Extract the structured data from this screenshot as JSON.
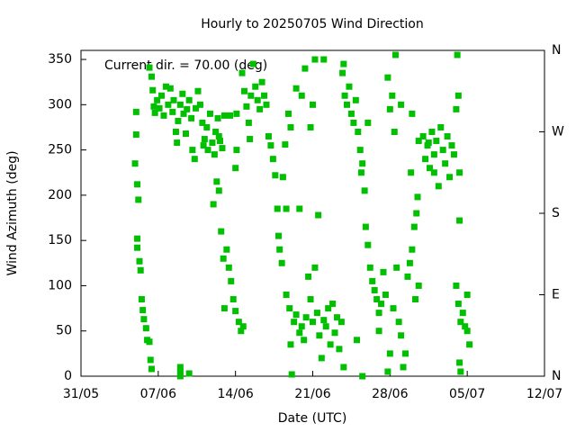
{
  "chart_data": {
    "type": "scatter",
    "title": "Hourly to 20250705 Wind Direction",
    "x_label": "Date (UTC)",
    "y_label": "Wind Azimuth (deg)",
    "annotation": "Current dir. = 70.00 (deg)",
    "color": "#00c000",
    "xlim": [
      0,
      42
    ],
    "xticks": [
      {
        "value": 0,
        "label": "31/05"
      },
      {
        "value": 7,
        "label": "07/06"
      },
      {
        "value": 14,
        "label": "14/06"
      },
      {
        "value": 21,
        "label": "21/06"
      },
      {
        "value": 28,
        "label": "28/06"
      },
      {
        "value": 35,
        "label": "05/07"
      },
      {
        "value": 42,
        "label": "12/07"
      }
    ],
    "ylim": [
      0,
      360
    ],
    "yticks": [
      0,
      50,
      100,
      150,
      200,
      250,
      300,
      350
    ],
    "y2lim": [
      0,
      360
    ],
    "y2ticks": [
      {
        "value": 0,
        "label": "N"
      },
      {
        "value": 90,
        "label": "E"
      },
      {
        "value": 180,
        "label": "S"
      },
      {
        "value": 270,
        "label": "W"
      },
      {
        "value": 360,
        "label": "N"
      }
    ],
    "x": [
      4.9,
      5.0,
      5.0,
      5.1,
      5.2,
      5.1,
      5.1,
      5.3,
      5.4,
      5.5,
      5.6,
      5.7,
      5.9,
      6.0,
      6.2,
      6.3,
      6.4,
      6.2,
      6.4,
      6.5,
      6.6,
      6.7,
      6.9,
      7.1,
      7.3,
      7.5,
      7.7,
      7.9,
      8.1,
      8.3,
      8.4,
      8.6,
      8.7,
      8.8,
      9.0,
      9.2,
      9.3,
      9.5,
      9.6,
      9.8,
      10.0,
      10.1,
      10.3,
      10.4,
      10.6,
      10.8,
      11.0,
      11.2,
      11.4,
      11.5,
      11.7,
      11.9,
      12.1,
      12.2,
      12.4,
      12.6,
      12.8,
      13.0,
      12.5,
      11.1,
      9.0,
      9.0,
      9.8,
      9.0,
      12.0,
      12.3,
      12.5,
      12.7,
      12.9,
      13.0,
      13.2,
      13.4,
      13.6,
      13.8,
      14.0,
      14.3,
      14.5,
      14.7,
      13.5,
      14.1,
      14.0,
      14.1,
      14.6,
      14.8,
      15.0,
      15.2,
      15.4,
      15.6,
      15.8,
      16.0,
      16.2,
      16.4,
      16.6,
      16.8,
      15.3,
      17.0,
      17.2,
      17.4,
      17.6,
      17.8,
      17.9,
      18.0,
      18.2,
      18.3,
      18.6,
      18.8,
      19.0,
      18.5,
      18.6,
      18.9,
      19.0,
      19.1,
      19.3,
      19.5,
      19.8,
      20.0,
      20.2,
      20.4,
      20.6,
      20.8,
      21.0,
      21.2,
      21.4,
      21.6,
      21.8,
      22.0,
      22.2,
      22.4,
      22.6,
      22.8,
      23.0,
      23.2,
      23.4,
      23.6,
      23.8,
      21.5,
      19.5,
      20.0,
      20.3,
      20.8,
      21.0,
      21.2,
      22.0,
      19.8,
      23.7,
      23.9,
      24.1,
      24.3,
      24.5,
      24.7,
      24.9,
      25.1,
      25.3,
      25.4,
      23.8,
      25.5,
      25.7,
      25.8,
      26.0,
      26.2,
      26.4,
      26.6,
      26.8,
      27.0,
      27.2,
      27.4,
      27.6,
      25.5,
      26.0,
      25.0,
      27.0,
      28.0,
      27.8,
      27.8,
      28.0,
      28.2,
      28.4,
      28.6,
      28.8,
      29.0,
      28.5,
      29.2,
      29.4,
      29.0,
      28.3,
      29.6,
      29.8,
      30.0,
      30.2,
      30.4,
      30.5,
      30.6,
      30.3,
      29.9,
      30.0,
      30.6,
      31.0,
      31.2,
      31.4,
      31.6,
      31.8,
      32.0,
      32.2,
      32.4,
      32.6,
      32.8,
      33.0,
      33.2,
      33.4,
      33.6,
      33.8,
      34.0,
      34.2,
      34.3,
      32.0,
      31.5,
      34.0,
      34.2,
      34.4,
      34.6,
      34.8,
      35.0,
      35.2,
      34.3,
      34.1,
      34.3,
      34.4,
      35.0
    ],
    "values": [
      235,
      267,
      292,
      212,
      195,
      152,
      142,
      127,
      117,
      85,
      73,
      63,
      53,
      40,
      38,
      18,
      8,
      341,
      331,
      316,
      298,
      291,
      305,
      296,
      310,
      288,
      320,
      300,
      318,
      292,
      305,
      270,
      258,
      282,
      300,
      312,
      290,
      268,
      295,
      305,
      285,
      250,
      240,
      296,
      315,
      300,
      280,
      262,
      275,
      250,
      290,
      258,
      245,
      270,
      285,
      260,
      252,
      288,
      265,
      255,
      10,
      5,
      3,
      0,
      190,
      215,
      205,
      160,
      130,
      75,
      140,
      120,
      105,
      85,
      72,
      60,
      50,
      55,
      288,
      290,
      230,
      250,
      335,
      315,
      298,
      280,
      310,
      345,
      320,
      305,
      295,
      325,
      310,
      300,
      262,
      265,
      255,
      240,
      222,
      185,
      155,
      140,
      125,
      220,
      185,
      290,
      275,
      256,
      90,
      75,
      35,
      2,
      60,
      68,
      48,
      55,
      40,
      65,
      110,
      85,
      60,
      120,
      70,
      45,
      20,
      62,
      55,
      75,
      35,
      80,
      48,
      65,
      30,
      60,
      10,
      178,
      318,
      310,
      340,
      275,
      300,
      350,
      350,
      185,
      335,
      310,
      300,
      320,
      290,
      280,
      305,
      270,
      250,
      225,
      345,
      235,
      205,
      165,
      145,
      120,
      105,
      95,
      85,
      70,
      80,
      115,
      90,
      0,
      280,
      40,
      50,
      25,
      5,
      330,
      295,
      310,
      270,
      120,
      60,
      45,
      355,
      10,
      25,
      300,
      75,
      110,
      125,
      140,
      165,
      180,
      198,
      100,
      85,
      225,
      290,
      260,
      265,
      240,
      255,
      230,
      270,
      245,
      260,
      210,
      275,
      250,
      235,
      265,
      220,
      255,
      245,
      295,
      310,
      225,
      225,
      258,
      100,
      80,
      60,
      70,
      55,
      90,
      35,
      172,
      355,
      15,
      5,
      50
    ]
  }
}
